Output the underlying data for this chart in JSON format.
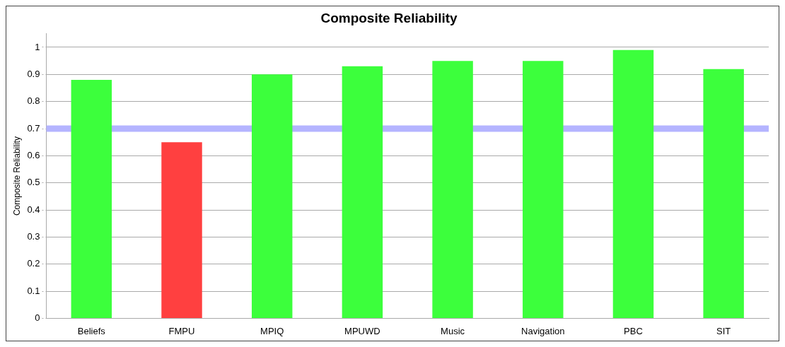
{
  "chart_data": {
    "type": "bar",
    "title": "Composite Reliability",
    "ylabel": "Composite Reliability",
    "categories": [
      "Beliefs",
      "FMPU",
      "MPIQ",
      "MPUWD",
      "Music",
      "Navigation",
      "PBC",
      "SIT"
    ],
    "values": [
      0.88,
      0.65,
      0.9,
      0.93,
      0.95,
      0.95,
      0.99,
      0.92
    ],
    "colors": [
      "#3cff3c",
      "#ff4040",
      "#3cff3c",
      "#3cff3c",
      "#3cff3c",
      "#3cff3c",
      "#3cff3c",
      "#3cff3c"
    ],
    "ylim": [
      0,
      1.05
    ],
    "yticks": [
      0,
      0.1,
      0.2,
      0.3,
      0.4,
      0.5,
      0.6,
      0.7,
      0.8,
      0.9,
      1
    ],
    "ref_lines": [
      {
        "axis": "y",
        "value": 0.7,
        "color": "#b4b4ff"
      }
    ],
    "grid": "y"
  }
}
